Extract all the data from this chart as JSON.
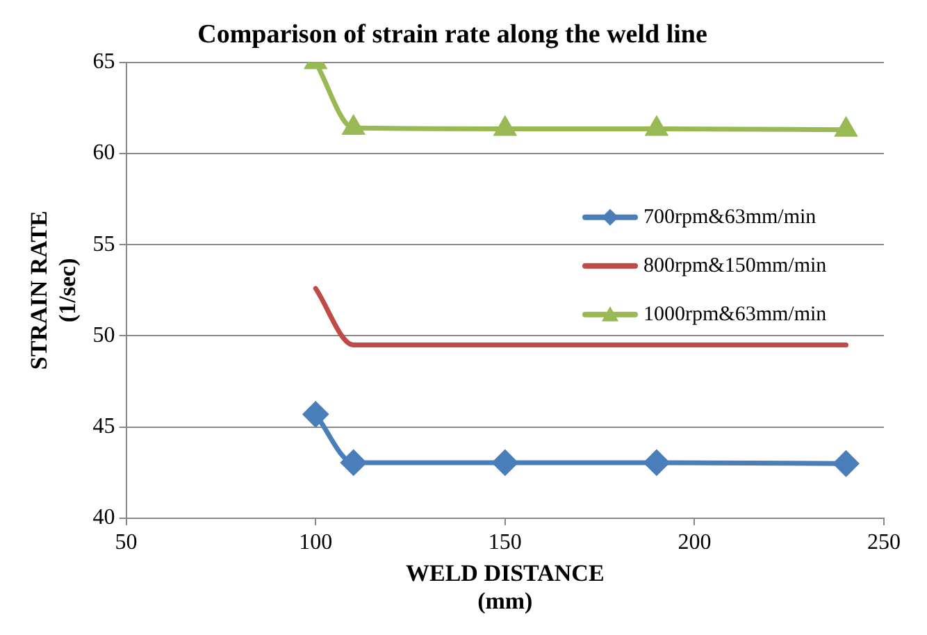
{
  "chart_data": {
    "type": "line",
    "title": "Comparison of strain rate along the weld line",
    "xlabel": "WELD DISTANCE\n(mm)",
    "ylabel": "STRAIN RATE\n(1/sec)",
    "x": [
      100,
      110,
      150,
      190,
      240
    ],
    "series": [
      {
        "name": "700rpm&63mm/min",
        "color": "#4a7ebb",
        "marker": "diamond",
        "values": [
          45.7,
          43.05,
          43.05,
          43.05,
          43.0
        ]
      },
      {
        "name": "800rpm&150mm/min",
        "color": "#be4b48",
        "marker": "none",
        "values": [
          52.6,
          49.5,
          49.5,
          49.5,
          49.5
        ]
      },
      {
        "name": "1000rpm&63mm/min",
        "color": "#98b954",
        "marker": "triangle",
        "values": [
          65.0,
          61.4,
          61.35,
          61.35,
          61.3
        ]
      }
    ],
    "xlim": [
      50,
      250
    ],
    "xticks": [
      50,
      100,
      150,
      200,
      250
    ],
    "ylim": [
      40,
      65
    ],
    "yticks": [
      40,
      45,
      50,
      55,
      60,
      65
    ],
    "grid": "y",
    "legend": "right"
  }
}
